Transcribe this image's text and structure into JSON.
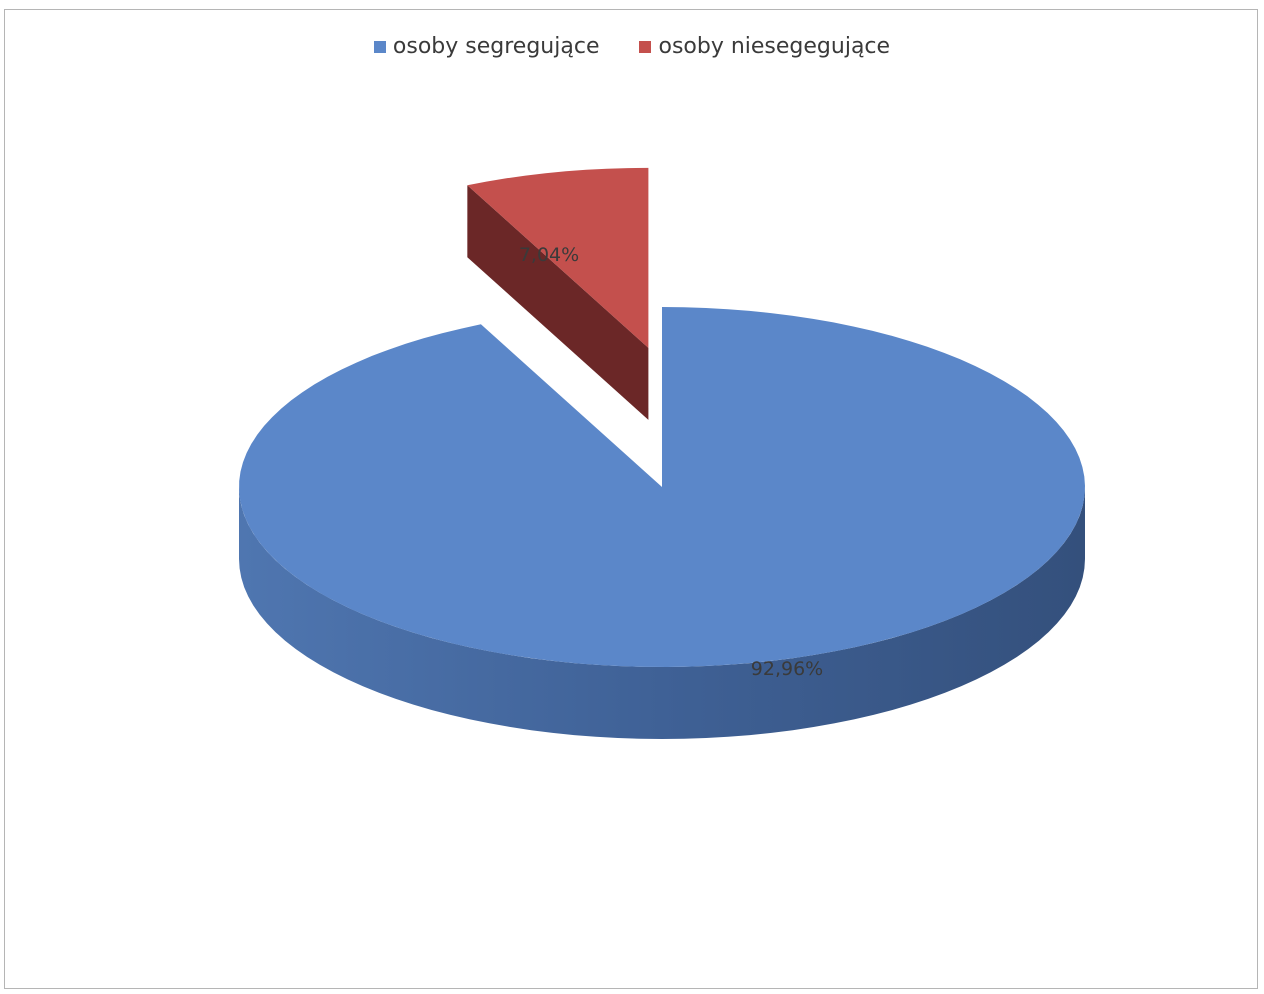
{
  "colors": {
    "segregujace": "#5b87c9",
    "segregujace_side": "#3f5f8e",
    "niesegregujace": "#c4504d",
    "niesegregujace_side": "#6b2727"
  },
  "legend": {
    "items": [
      {
        "label": "osoby segregujące",
        "color": "#5b87c9"
      },
      {
        "label": "osoby niesegegujące",
        "color": "#c4504d"
      }
    ]
  },
  "chart_data": {
    "type": "pie",
    "style": "3d-exploded",
    "legend_position": "top",
    "categories": [
      "osoby segregujące",
      "osoby niesegegujące"
    ],
    "values": [
      92.96,
      7.04
    ],
    "unit": "%",
    "data_labels": [
      "92,96%",
      "7,04%"
    ]
  }
}
